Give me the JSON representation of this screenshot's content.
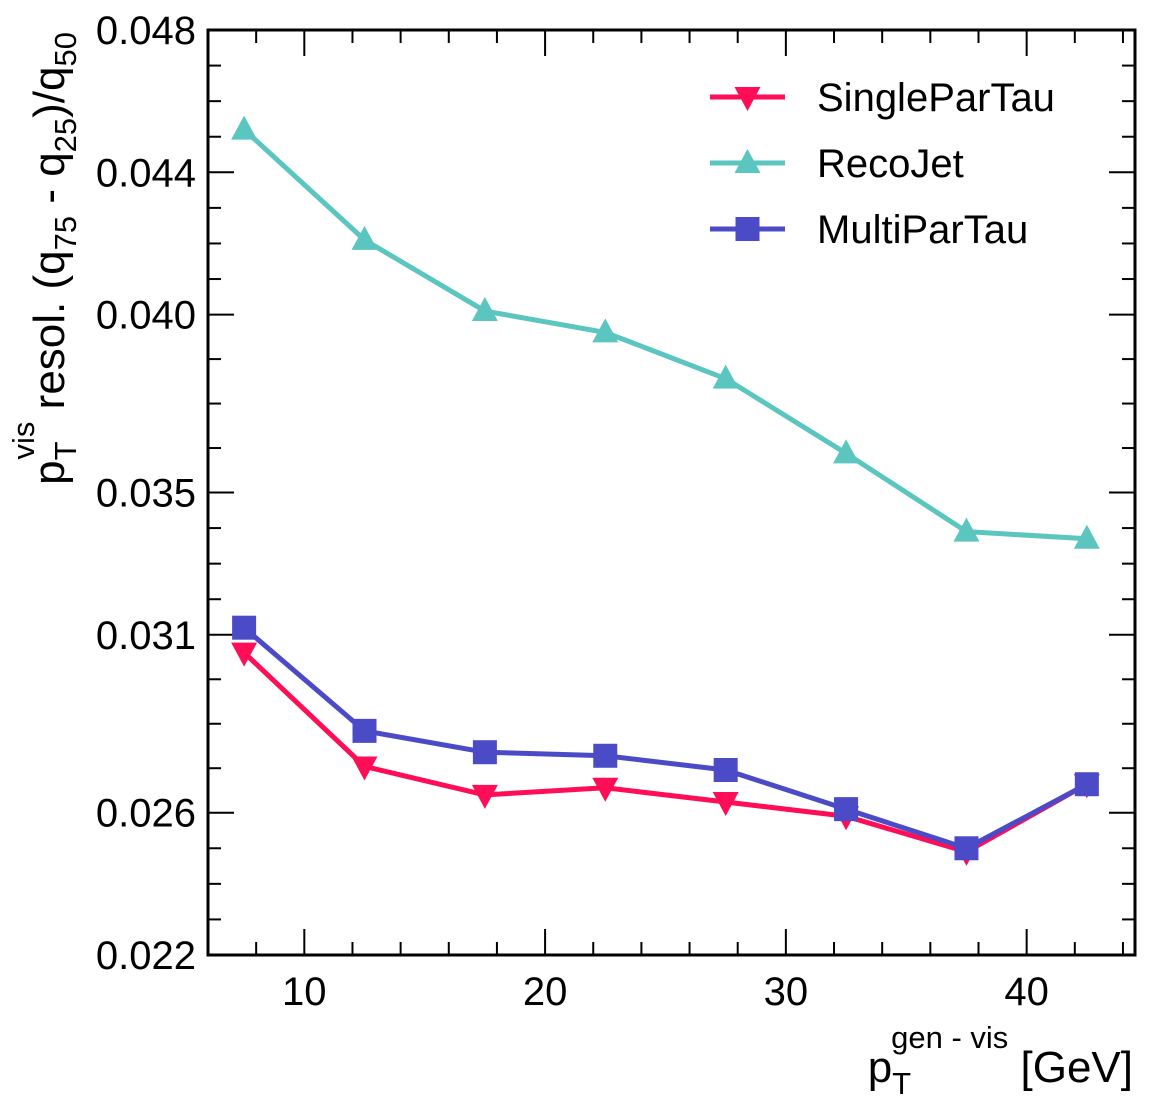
{
  "chart_data": {
    "type": "line",
    "x": [
      7.5,
      12.5,
      17.5,
      22.5,
      27.5,
      32.5,
      37.5,
      42.5
    ],
    "xlim": [
      6,
      44.5
    ],
    "ylim": [
      0.022,
      0.048
    ],
    "xticks": [
      "10",
      "20",
      "30",
      "40"
    ],
    "yticks": [
      "0.022",
      "0.026",
      "0.031",
      "0.035",
      "0.040",
      "0.044",
      "0.048"
    ],
    "xlabel": {
      "main": "p",
      "sub": "T",
      "sup": "gen - vis",
      "unit": "[GeV]"
    },
    "ylabel": {
      "main": "p",
      "sub": "T",
      "sup": "vis",
      "rest": "resol. (q",
      "sub2": "75",
      "mid": "- q",
      "sub3": "25",
      "end": ")/q",
      "sub4": "50"
    },
    "grid": false,
    "legend_position": "top-right",
    "series": [
      {
        "name": "SingleParTau",
        "color": "#ff0d57",
        "marker": "triangle-down",
        "values": [
          0.0305,
          0.0273,
          0.0265,
          0.0267,
          0.0263,
          0.0259,
          0.0249,
          0.0268
        ]
      },
      {
        "name": "RecoJet",
        "color": "#5bc5c0",
        "marker": "triangle-up",
        "values": [
          0.0452,
          0.0421,
          0.0401,
          0.0395,
          0.0382,
          0.0361,
          0.0339,
          0.0337
        ]
      },
      {
        "name": "MultiParTau",
        "color": "#4b4bc8",
        "marker": "square",
        "values": [
          0.0312,
          0.0283,
          0.0277,
          0.0276,
          0.0272,
          0.0261,
          0.025,
          0.0268
        ]
      }
    ]
  }
}
